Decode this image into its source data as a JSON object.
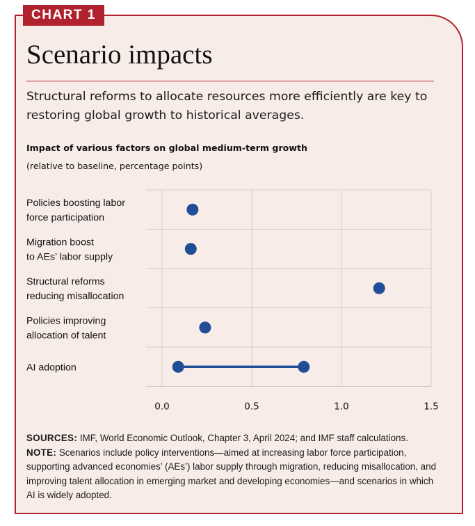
{
  "header": {
    "tag": "CHART 1",
    "title": "Scenario impacts",
    "subtitle": "Structural reforms to allocate resources more efficiently are key to restoring global growth to historical averages."
  },
  "chart_header": {
    "title": "Impact of various factors on global medium-term growth",
    "subtitle": "(relative to baseline, percentage points)"
  },
  "chart_data": {
    "type": "scatter",
    "orientation": "horizontal",
    "title": "Impact of various factors on global medium-term growth",
    "subtitle": "(relative to baseline, percentage points)",
    "xlim": [
      0,
      1.5
    ],
    "xticks": [
      "0.0",
      "0.5",
      "1.0",
      "1.5"
    ],
    "xtick_values": [
      0,
      0.5,
      1.0,
      1.5
    ],
    "grid": true,
    "color": "#1f4e96",
    "categories": [
      [
        "Policies boosting labor",
        "force participation"
      ],
      [
        "Migration boost",
        "to AEs’ labor supply"
      ],
      [
        "Structural reforms",
        "reducing misallocation"
      ],
      [
        "Policies improving",
        "allocation of talent"
      ],
      [
        "AI adoption"
      ]
    ],
    "points": [
      {
        "category": 0,
        "x": 0.17
      },
      {
        "category": 1,
        "x": 0.16
      },
      {
        "category": 2,
        "x": 1.21
      },
      {
        "category": 3,
        "x": 0.24
      },
      {
        "category": 4,
        "x_min": 0.09,
        "x_max": 0.79
      }
    ]
  },
  "notes": {
    "sources_label": "SOURCES:",
    "sources_text": " IMF, World Economic Outlook, Chapter 3, April 2024; and IMF staff calculations.",
    "note_label": "NOTE:",
    "note_text": " Scenarios include policy interventions—aimed at increasing labor force participation, supporting advanced economies’ (AEs’) labor supply through migration, reducing misallocation, and improving talent allocation in emerging market and developing economies—and scenarios in which AI is widely adopted."
  },
  "colors": {
    "accent": "#b0222d",
    "background": "#f8ece8",
    "marker": "#1f4e96",
    "grid": "#d8ccc9"
  }
}
